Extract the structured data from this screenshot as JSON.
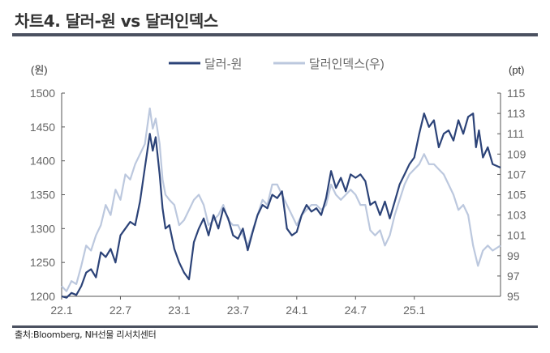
{
  "title": "차트4. 달러-원 vs 달러인덱스",
  "footer": "출처:Bloomberg, NH선물 리서치센터",
  "chart_data": {
    "type": "line",
    "title": "차트4. 달러-원 vs 달러인덱스",
    "left_unit": "(원)",
    "right_unit": "(pt)",
    "ylim_left": [
      1200,
      1500
    ],
    "ylim_right": [
      95,
      115
    ],
    "yticks_left": [
      1200,
      1250,
      1300,
      1350,
      1400,
      1450,
      1500
    ],
    "yticks_right": [
      95,
      97,
      99,
      101,
      103,
      105,
      107,
      109,
      111,
      113,
      115
    ],
    "xticks": [
      {
        "label": "22.1",
        "m": 0
      },
      {
        "label": "22.7",
        "m": 6
      },
      {
        "label": "23.1",
        "m": 12
      },
      {
        "label": "23.7",
        "m": 18
      },
      {
        "label": "24.1",
        "m": 24
      },
      {
        "label": "24.7",
        "m": 30
      },
      {
        "label": "25.1",
        "m": 36
      }
    ],
    "xlim_months_from_22_1": [
      0,
      44.8
    ],
    "legend": "top-center",
    "colors": {
      "usdkrw": "#2c4378",
      "dxy": "#bcc8de",
      "axis": "#555555",
      "bar": "#4b5160"
    },
    "series": [
      {
        "name": "달러-원",
        "axis": "left",
        "points": [
          [
            0,
            1200
          ],
          [
            0.5,
            1198
          ],
          [
            1,
            1205
          ],
          [
            1.5,
            1202
          ],
          [
            2,
            1215
          ],
          [
            2.5,
            1235
          ],
          [
            3,
            1240
          ],
          [
            3.5,
            1228
          ],
          [
            4,
            1265
          ],
          [
            4.5,
            1258
          ],
          [
            5,
            1270
          ],
          [
            5.5,
            1250
          ],
          [
            6,
            1290
          ],
          [
            6.5,
            1300
          ],
          [
            7,
            1310
          ],
          [
            7.5,
            1305
          ],
          [
            8,
            1340
          ],
          [
            8.5,
            1390
          ],
          [
            9,
            1440
          ],
          [
            9.3,
            1415
          ],
          [
            9.6,
            1435
          ],
          [
            10,
            1380
          ],
          [
            10.3,
            1330
          ],
          [
            10.6,
            1300
          ],
          [
            11,
            1305
          ],
          [
            11.5,
            1270
          ],
          [
            12,
            1250
          ],
          [
            12.5,
            1235
          ],
          [
            13,
            1225
          ],
          [
            13.5,
            1280
          ],
          [
            14,
            1300
          ],
          [
            14.5,
            1315
          ],
          [
            15,
            1290
          ],
          [
            15.5,
            1320
          ],
          [
            16,
            1300
          ],
          [
            16.5,
            1330
          ],
          [
            17,
            1315
          ],
          [
            17.5,
            1290
          ],
          [
            18,
            1285
          ],
          [
            18.5,
            1300
          ],
          [
            19,
            1268
          ],
          [
            19.5,
            1295
          ],
          [
            20,
            1320
          ],
          [
            20.5,
            1335
          ],
          [
            21,
            1330
          ],
          [
            21.5,
            1350
          ],
          [
            22,
            1345
          ],
          [
            22.5,
            1355
          ],
          [
            23,
            1300
          ],
          [
            23.5,
            1290
          ],
          [
            24,
            1295
          ],
          [
            24.5,
            1320
          ],
          [
            25,
            1335
          ],
          [
            25.5,
            1325
          ],
          [
            26,
            1330
          ],
          [
            26.5,
            1320
          ],
          [
            27,
            1345
          ],
          [
            27.5,
            1385
          ],
          [
            28,
            1360
          ],
          [
            28.5,
            1375
          ],
          [
            29,
            1355
          ],
          [
            29.5,
            1380
          ],
          [
            30,
            1375
          ],
          [
            30.5,
            1380
          ],
          [
            31,
            1370
          ],
          [
            31.5,
            1335
          ],
          [
            32,
            1340
          ],
          [
            32.5,
            1320
          ],
          [
            33,
            1340
          ],
          [
            33.5,
            1315
          ],
          [
            34,
            1340
          ],
          [
            34.5,
            1365
          ],
          [
            35,
            1380
          ],
          [
            35.5,
            1395
          ],
          [
            36,
            1405
          ],
          [
            36.5,
            1440
          ],
          [
            37,
            1470
          ],
          [
            37.5,
            1450
          ],
          [
            38,
            1460
          ],
          [
            38.5,
            1420
          ],
          [
            39,
            1440
          ],
          [
            39.5,
            1445
          ],
          [
            40,
            1430
          ],
          [
            40.5,
            1460
          ],
          [
            41,
            1440
          ],
          [
            41.5,
            1465
          ],
          [
            42,
            1470
          ],
          [
            42.3,
            1420
          ],
          [
            42.6,
            1445
          ],
          [
            43,
            1405
          ],
          [
            43.5,
            1420
          ],
          [
            44,
            1395
          ],
          [
            44.8,
            1390
          ]
        ]
      },
      {
        "name": "달러인덱스(우)",
        "axis": "right",
        "points": [
          [
            0,
            96
          ],
          [
            0.5,
            95.5
          ],
          [
            1,
            96.5
          ],
          [
            1.5,
            96.2
          ],
          [
            2,
            98
          ],
          [
            2.5,
            100
          ],
          [
            3,
            99.5
          ],
          [
            3.5,
            101
          ],
          [
            4,
            102
          ],
          [
            4.5,
            104
          ],
          [
            5,
            103
          ],
          [
            5.5,
            105.5
          ],
          [
            6,
            104.5
          ],
          [
            6.5,
            107
          ],
          [
            7,
            106.5
          ],
          [
            7.5,
            108
          ],
          [
            8,
            109
          ],
          [
            8.5,
            110
          ],
          [
            9,
            113.5
          ],
          [
            9.3,
            111.5
          ],
          [
            9.6,
            112.5
          ],
          [
            10,
            110
          ],
          [
            10.3,
            106.5
          ],
          [
            10.6,
            105
          ],
          [
            11,
            104.5
          ],
          [
            11.5,
            104
          ],
          [
            12,
            102
          ],
          [
            12.5,
            102.5
          ],
          [
            13,
            103.5
          ],
          [
            13.5,
            104.5
          ],
          [
            14,
            105
          ],
          [
            14.5,
            104
          ],
          [
            15,
            102
          ],
          [
            15.5,
            102.5
          ],
          [
            16,
            103
          ],
          [
            16.5,
            104
          ],
          [
            17,
            102.5
          ],
          [
            17.5,
            102
          ],
          [
            18,
            102
          ],
          [
            18.5,
            101
          ],
          [
            19,
            100
          ],
          [
            19.5,
            101.5
          ],
          [
            20,
            103
          ],
          [
            20.5,
            104.5
          ],
          [
            21,
            104
          ],
          [
            21.5,
            106
          ],
          [
            22,
            106
          ],
          [
            22.5,
            105
          ],
          [
            23,
            104
          ],
          [
            23.5,
            103
          ],
          [
            24,
            102
          ],
          [
            24.5,
            103
          ],
          [
            25,
            103.5
          ],
          [
            25.5,
            104
          ],
          [
            26,
            104
          ],
          [
            26.5,
            103.5
          ],
          [
            27,
            104
          ],
          [
            27.5,
            106
          ],
          [
            28,
            105
          ],
          [
            28.5,
            104.5
          ],
          [
            29,
            105
          ],
          [
            29.5,
            105.5
          ],
          [
            30,
            105
          ],
          [
            30.5,
            104
          ],
          [
            31,
            104
          ],
          [
            31.5,
            101.5
          ],
          [
            32,
            101
          ],
          [
            32.5,
            101.5
          ],
          [
            33,
            100
          ],
          [
            33.5,
            101
          ],
          [
            34,
            103
          ],
          [
            34.5,
            104.5
          ],
          [
            35,
            106
          ],
          [
            35.5,
            107
          ],
          [
            36,
            107.5
          ],
          [
            36.5,
            108
          ],
          [
            37,
            109
          ],
          [
            37.5,
            108
          ],
          [
            38,
            108
          ],
          [
            38.5,
            107.5
          ],
          [
            39,
            107
          ],
          [
            39.5,
            106
          ],
          [
            40,
            105
          ],
          [
            40.5,
            103.5
          ],
          [
            41,
            104
          ],
          [
            41.5,
            103
          ],
          [
            42,
            100
          ],
          [
            42.5,
            98
          ],
          [
            43,
            99.5
          ],
          [
            43.5,
            100
          ],
          [
            44,
            99.5
          ],
          [
            44.8,
            100
          ]
        ]
      }
    ]
  }
}
